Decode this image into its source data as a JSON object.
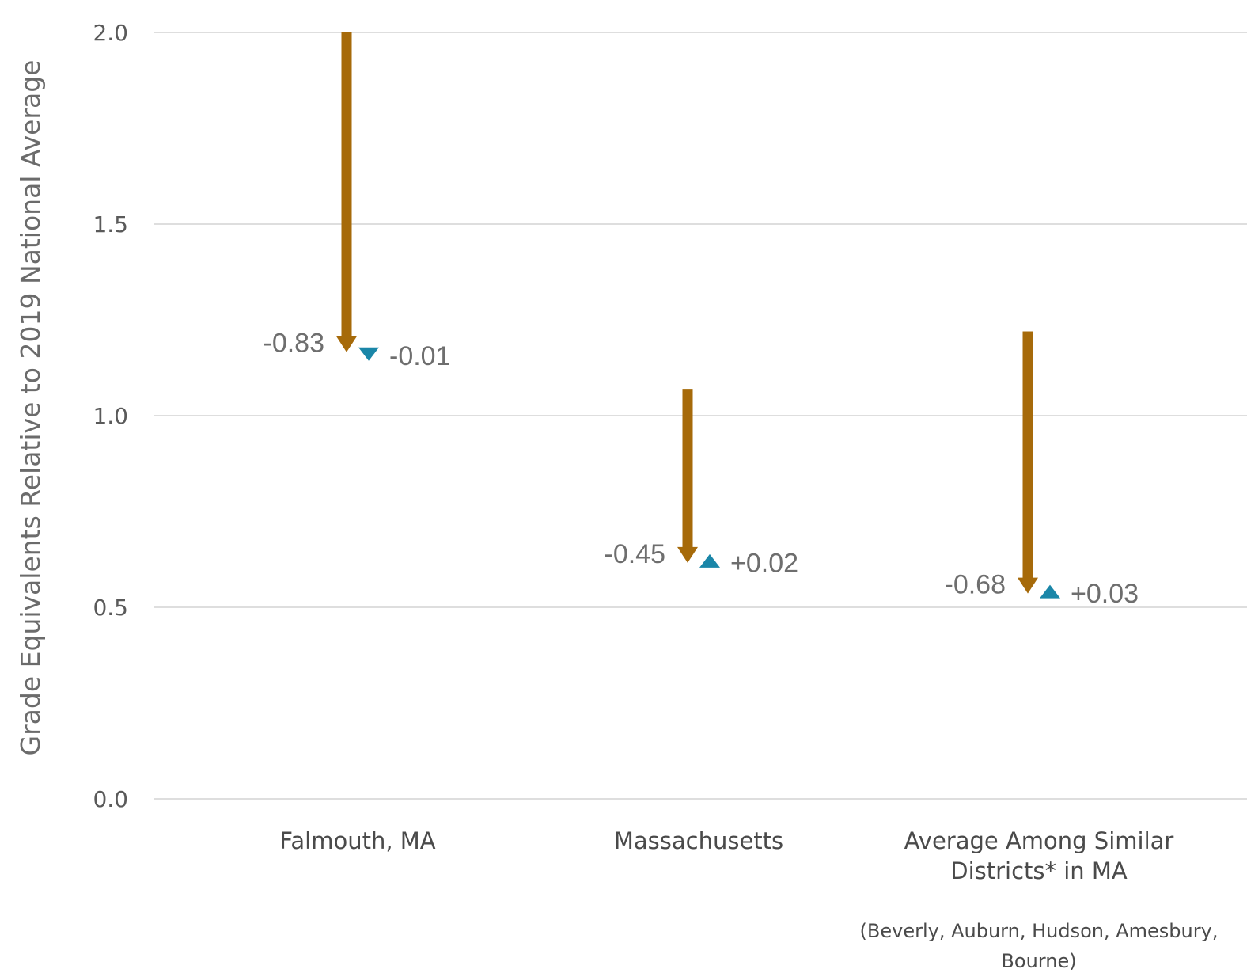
{
  "chart_data": {
    "type": "arrow",
    "ylabel": "Grade Equivalents Relative to 2019 National Average",
    "ylim": [
      0,
      2.0
    ],
    "yticks": [
      "0.0",
      "0.5",
      "1.0",
      "1.5",
      "2.0"
    ],
    "grid": true,
    "colors": {
      "decline_arrow": "#A66A0A",
      "change_marker": "#1A86A8"
    },
    "categories": [
      {
        "name": "Falmouth, MA",
        "name_lines": [
          "Falmouth, MA"
        ],
        "footnote_lines": [],
        "start": 2.0,
        "after_decline": 1.17,
        "decline_label": "-0.83",
        "change_value": -0.01,
        "change_label": "-0.01"
      },
      {
        "name": "Massachusetts",
        "name_lines": [
          "Massachusetts"
        ],
        "footnote_lines": [],
        "start": 1.07,
        "after_decline": 0.62,
        "decline_label": "-0.45",
        "change_value": 0.02,
        "change_label": "+0.02"
      },
      {
        "name": "Average Among Similar Districts* in MA",
        "name_lines": [
          "Average Among Similar",
          "Districts* in MA"
        ],
        "footnote_lines": [
          "(Beverly, Auburn, Hudson, Amesbury,",
          "Bourne)"
        ],
        "start": 1.22,
        "after_decline": 0.54,
        "decline_label": "-0.68",
        "change_value": 0.03,
        "change_label": "+0.03"
      }
    ]
  }
}
